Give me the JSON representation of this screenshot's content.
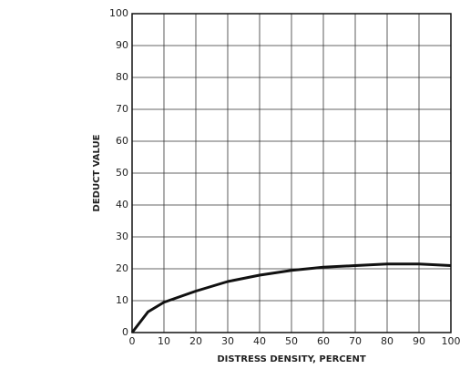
{
  "chart_data": {
    "type": "line",
    "xlabel": "DISTRESS DENSITY, PERCENT",
    "ylabel": "DEDUCT VALUE",
    "x": [
      0,
      5,
      10,
      20,
      30,
      40,
      50,
      60,
      70,
      80,
      90,
      100
    ],
    "series": [
      {
        "name": null,
        "color": "#111111",
        "values": [
          0,
          6.5,
          9.5,
          13,
          16,
          18,
          19.5,
          20.5,
          21,
          21.5,
          21.5,
          21
        ]
      }
    ],
    "xlim": [
      0,
      100
    ],
    "xticks": [
      0,
      10,
      20,
      30,
      40,
      50,
      60,
      70,
      80,
      90,
      100
    ],
    "ylim": [
      0,
      100
    ],
    "yticks": [
      0,
      10,
      20,
      30,
      40,
      50,
      60,
      70,
      80,
      90,
      100
    ],
    "grid": true
  }
}
